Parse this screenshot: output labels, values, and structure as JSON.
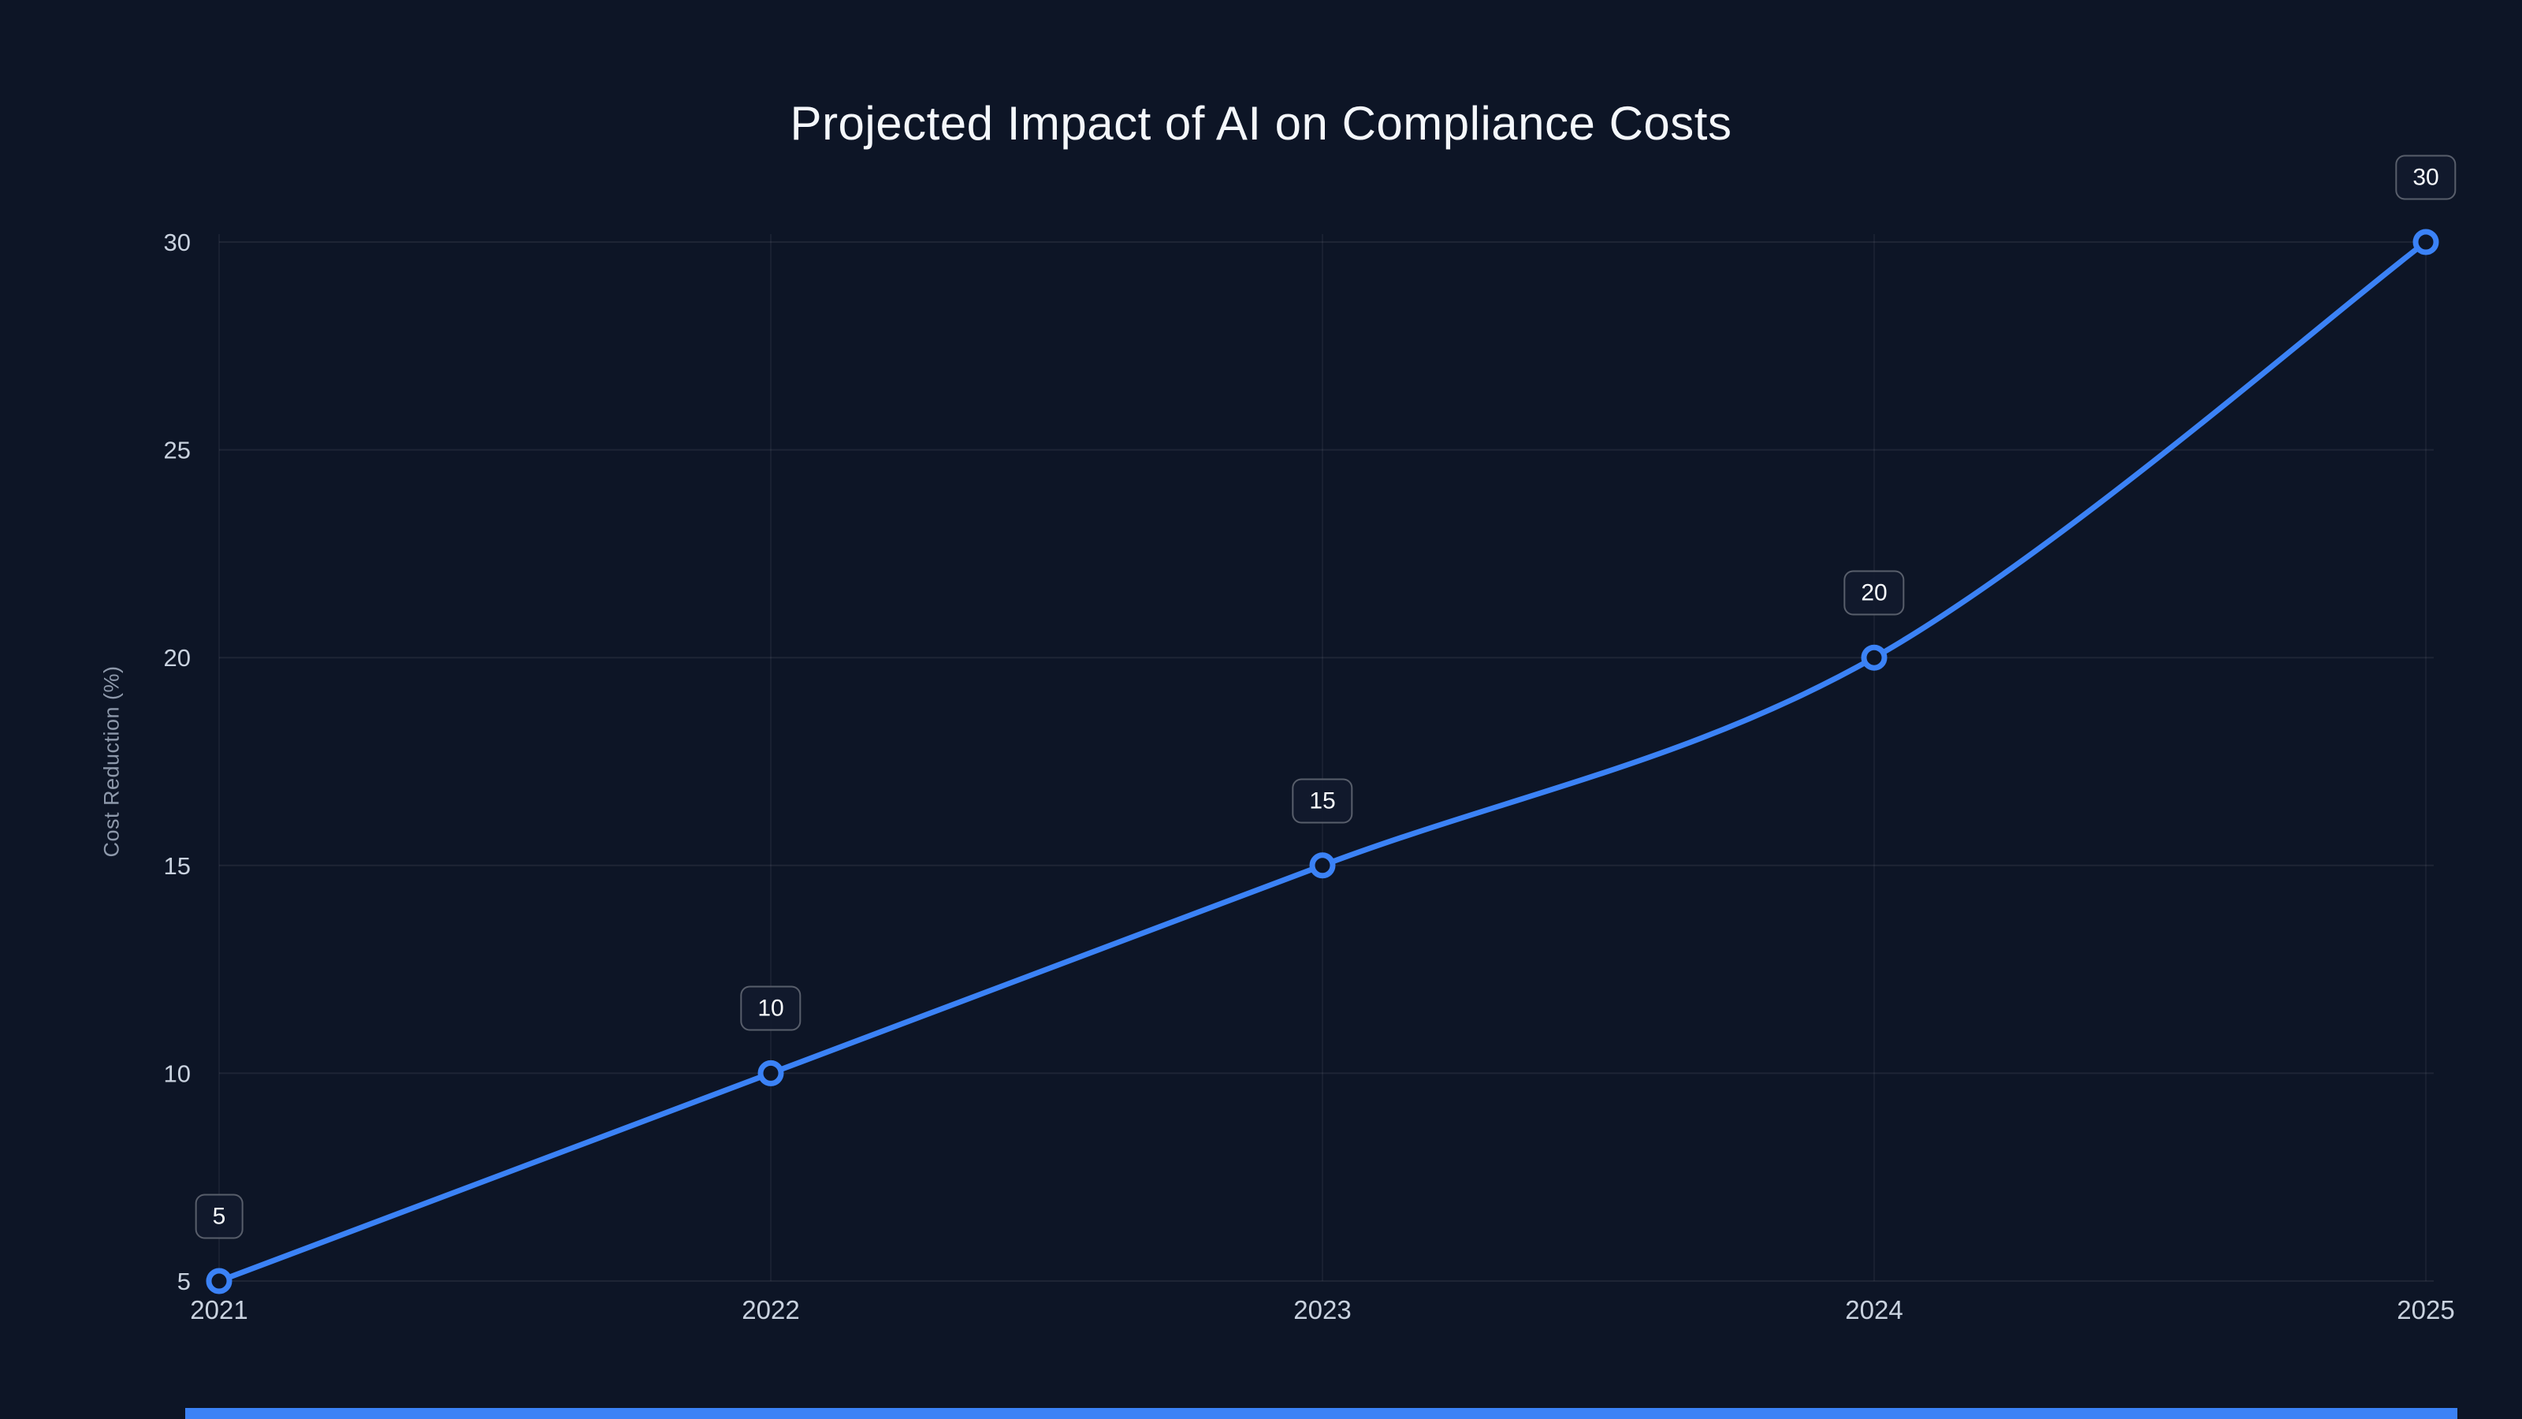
{
  "chart": {
    "title": "Projected Impact of AI on Compliance Costs",
    "ylabel": "Cost Reduction (%)"
  },
  "chart_data": {
    "type": "line",
    "title": "Projected Impact of AI on Compliance Costs",
    "xlabel": "",
    "ylabel": "Cost Reduction (%)",
    "x": [
      2021,
      2022,
      2023,
      2024,
      2025
    ],
    "series": [
      {
        "name": "Cost Reduction (%)",
        "values": [
          5,
          10,
          15,
          20,
          30
        ]
      }
    ],
    "data_labels": [
      "5",
      "10",
      "15",
      "20",
      "30"
    ],
    "x_tick_labels": [
      "2021",
      "2022",
      "2023",
      "2024",
      "2025"
    ],
    "yticks": [
      5,
      10,
      15,
      20,
      25,
      30
    ],
    "ylim": [
      5,
      30
    ],
    "grid": true,
    "legend_position": "none",
    "colors": {
      "line": "#3b82f6",
      "marker_fill": "#0d1526",
      "background": "#0d1526",
      "grid": "rgba(255,255,255,0.07)",
      "grid_vertical": "rgba(255,255,255,0.05)",
      "tick_text": "#c9d2df",
      "title_text": "#f4f7fb",
      "axis_label_text": "#8e99ab",
      "badge_border": "rgba(255,255,255,0.30)",
      "badge_bg": "rgba(17,26,45,0.92)"
    }
  }
}
